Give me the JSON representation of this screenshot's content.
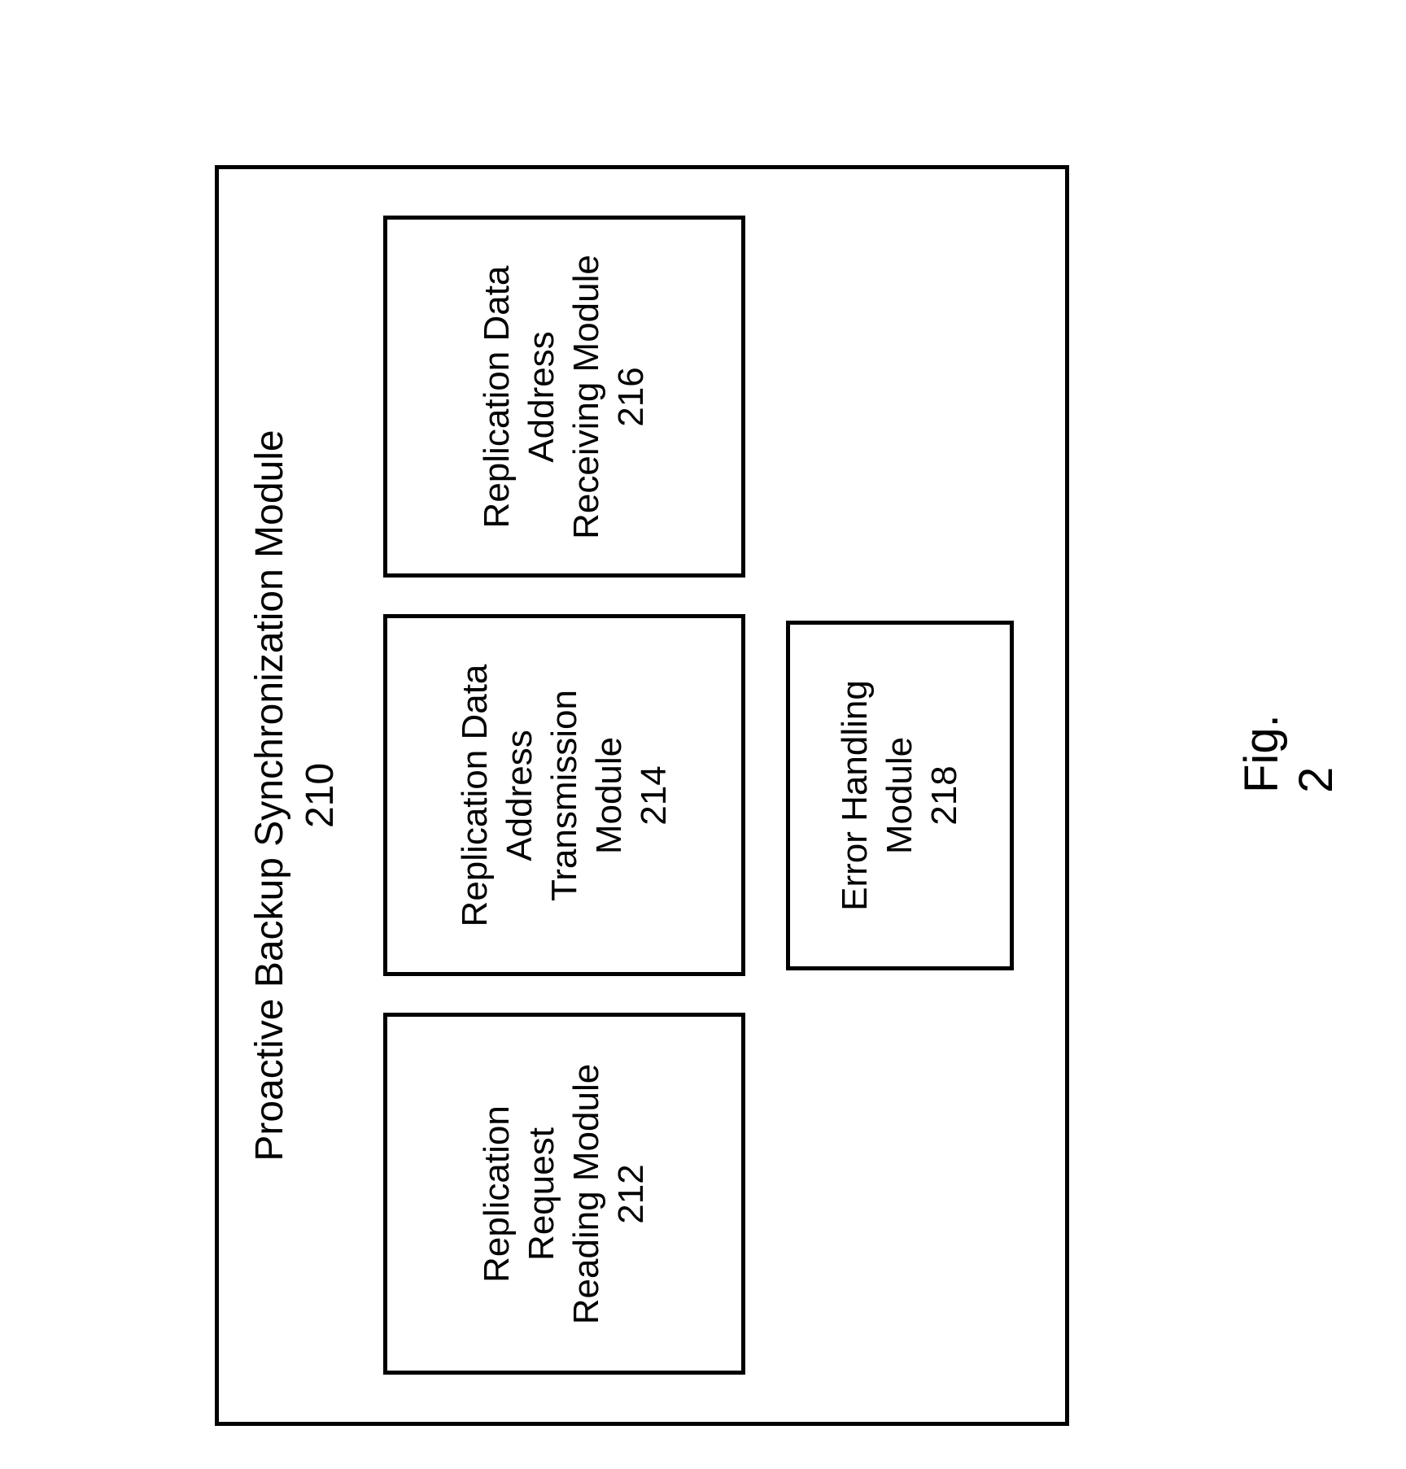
{
  "diagram": {
    "type": "block-diagram",
    "container": {
      "title_line1": "Proactive Backup Synchronization Module",
      "title_line2": "210",
      "border_color": "#000000",
      "border_width": 5,
      "background_color": "#ffffff"
    },
    "modules": {
      "row1": [
        {
          "lines": [
            "Replication",
            "Request",
            "Reading Module",
            "212"
          ],
          "name": "replication-request-reading-module"
        },
        {
          "lines": [
            "Replication Data",
            "Address",
            "Transmission",
            "Module",
            "214"
          ],
          "name": "replication-data-address-transmission-module"
        },
        {
          "lines": [
            "Replication Data",
            "Address",
            "Receiving Module",
            "216"
          ],
          "name": "replication-data-address-receiving-module"
        }
      ],
      "row2": [
        {
          "lines": [
            "Error Handling",
            "Module",
            "218"
          ],
          "name": "error-handling-module"
        }
      ]
    },
    "figure_label": "Fig. 2",
    "styling": {
      "font_family": "Arial, Helvetica, sans-serif",
      "title_fontsize": 48,
      "module_fontsize": 44,
      "figure_label_fontsize": 58,
      "text_color": "#000000",
      "rotation_degrees": -90
    }
  }
}
